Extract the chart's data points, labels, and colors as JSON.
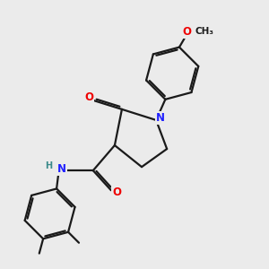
{
  "bg_color": "#ebebeb",
  "bond_color": "#1a1a1a",
  "bond_width": 1.6,
  "dbo": 0.055,
  "atom_colors": {
    "N": "#2020ff",
    "O": "#ee0000",
    "C": "#1a1a1a",
    "H": "#3a8a8a"
  },
  "font_size_atom": 8.5,
  "font_size_small": 7.0,
  "font_size_methoxy": 7.5
}
